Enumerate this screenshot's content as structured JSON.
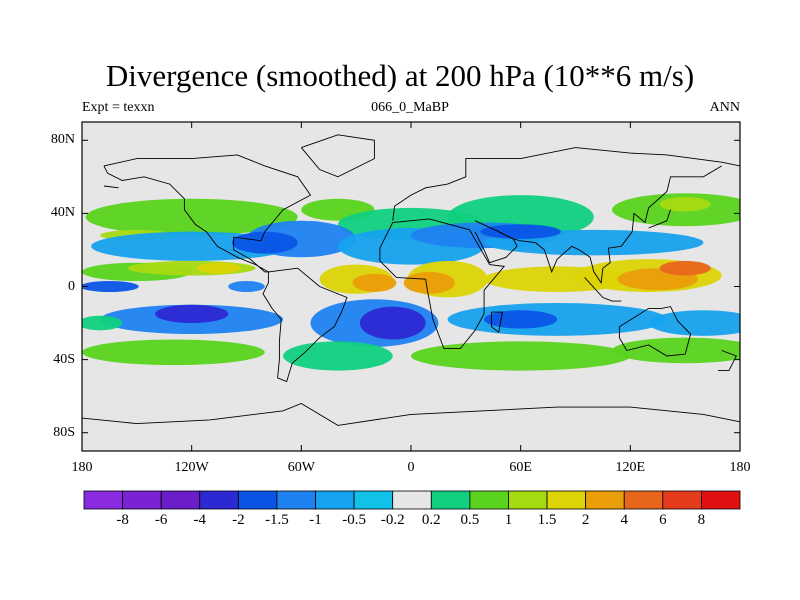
{
  "chart_data": {
    "type": "heatmap",
    "title": "Divergence (smoothed) at 200 hPa (10**6 m/s)",
    "left_label": "Expt = texxn",
    "center_label": "066_0_MaBP",
    "right_label": "ANN",
    "x_ticks": [
      "180",
      "120W",
      "60W",
      "0",
      "60E",
      "120E",
      "180"
    ],
    "y_ticks": [
      "80N",
      "40N",
      "0",
      "40S",
      "80S"
    ],
    "xlim": [
      -180,
      180
    ],
    "ylim": [
      -90,
      90
    ],
    "colorbar": {
      "labels": [
        "-8",
        "-6",
        "-4",
        "-2",
        "-1.5",
        "-1",
        "-0.5",
        "-0.2",
        "0.2",
        "0.5",
        "1",
        "1.5",
        "2",
        "4",
        "6",
        "8"
      ],
      "colors": [
        "#8a2be2",
        "#7a22d6",
        "#6a1dc8",
        "#2c28d2",
        "#0b55e6",
        "#1e82f0",
        "#16a2ee",
        "#12c2e6",
        "#e6e6e6",
        "#10d080",
        "#5ad31e",
        "#a6da10",
        "#dcd406",
        "#ea9e0a",
        "#e8661c",
        "#e43c1c",
        "#e21010"
      ]
    }
  }
}
